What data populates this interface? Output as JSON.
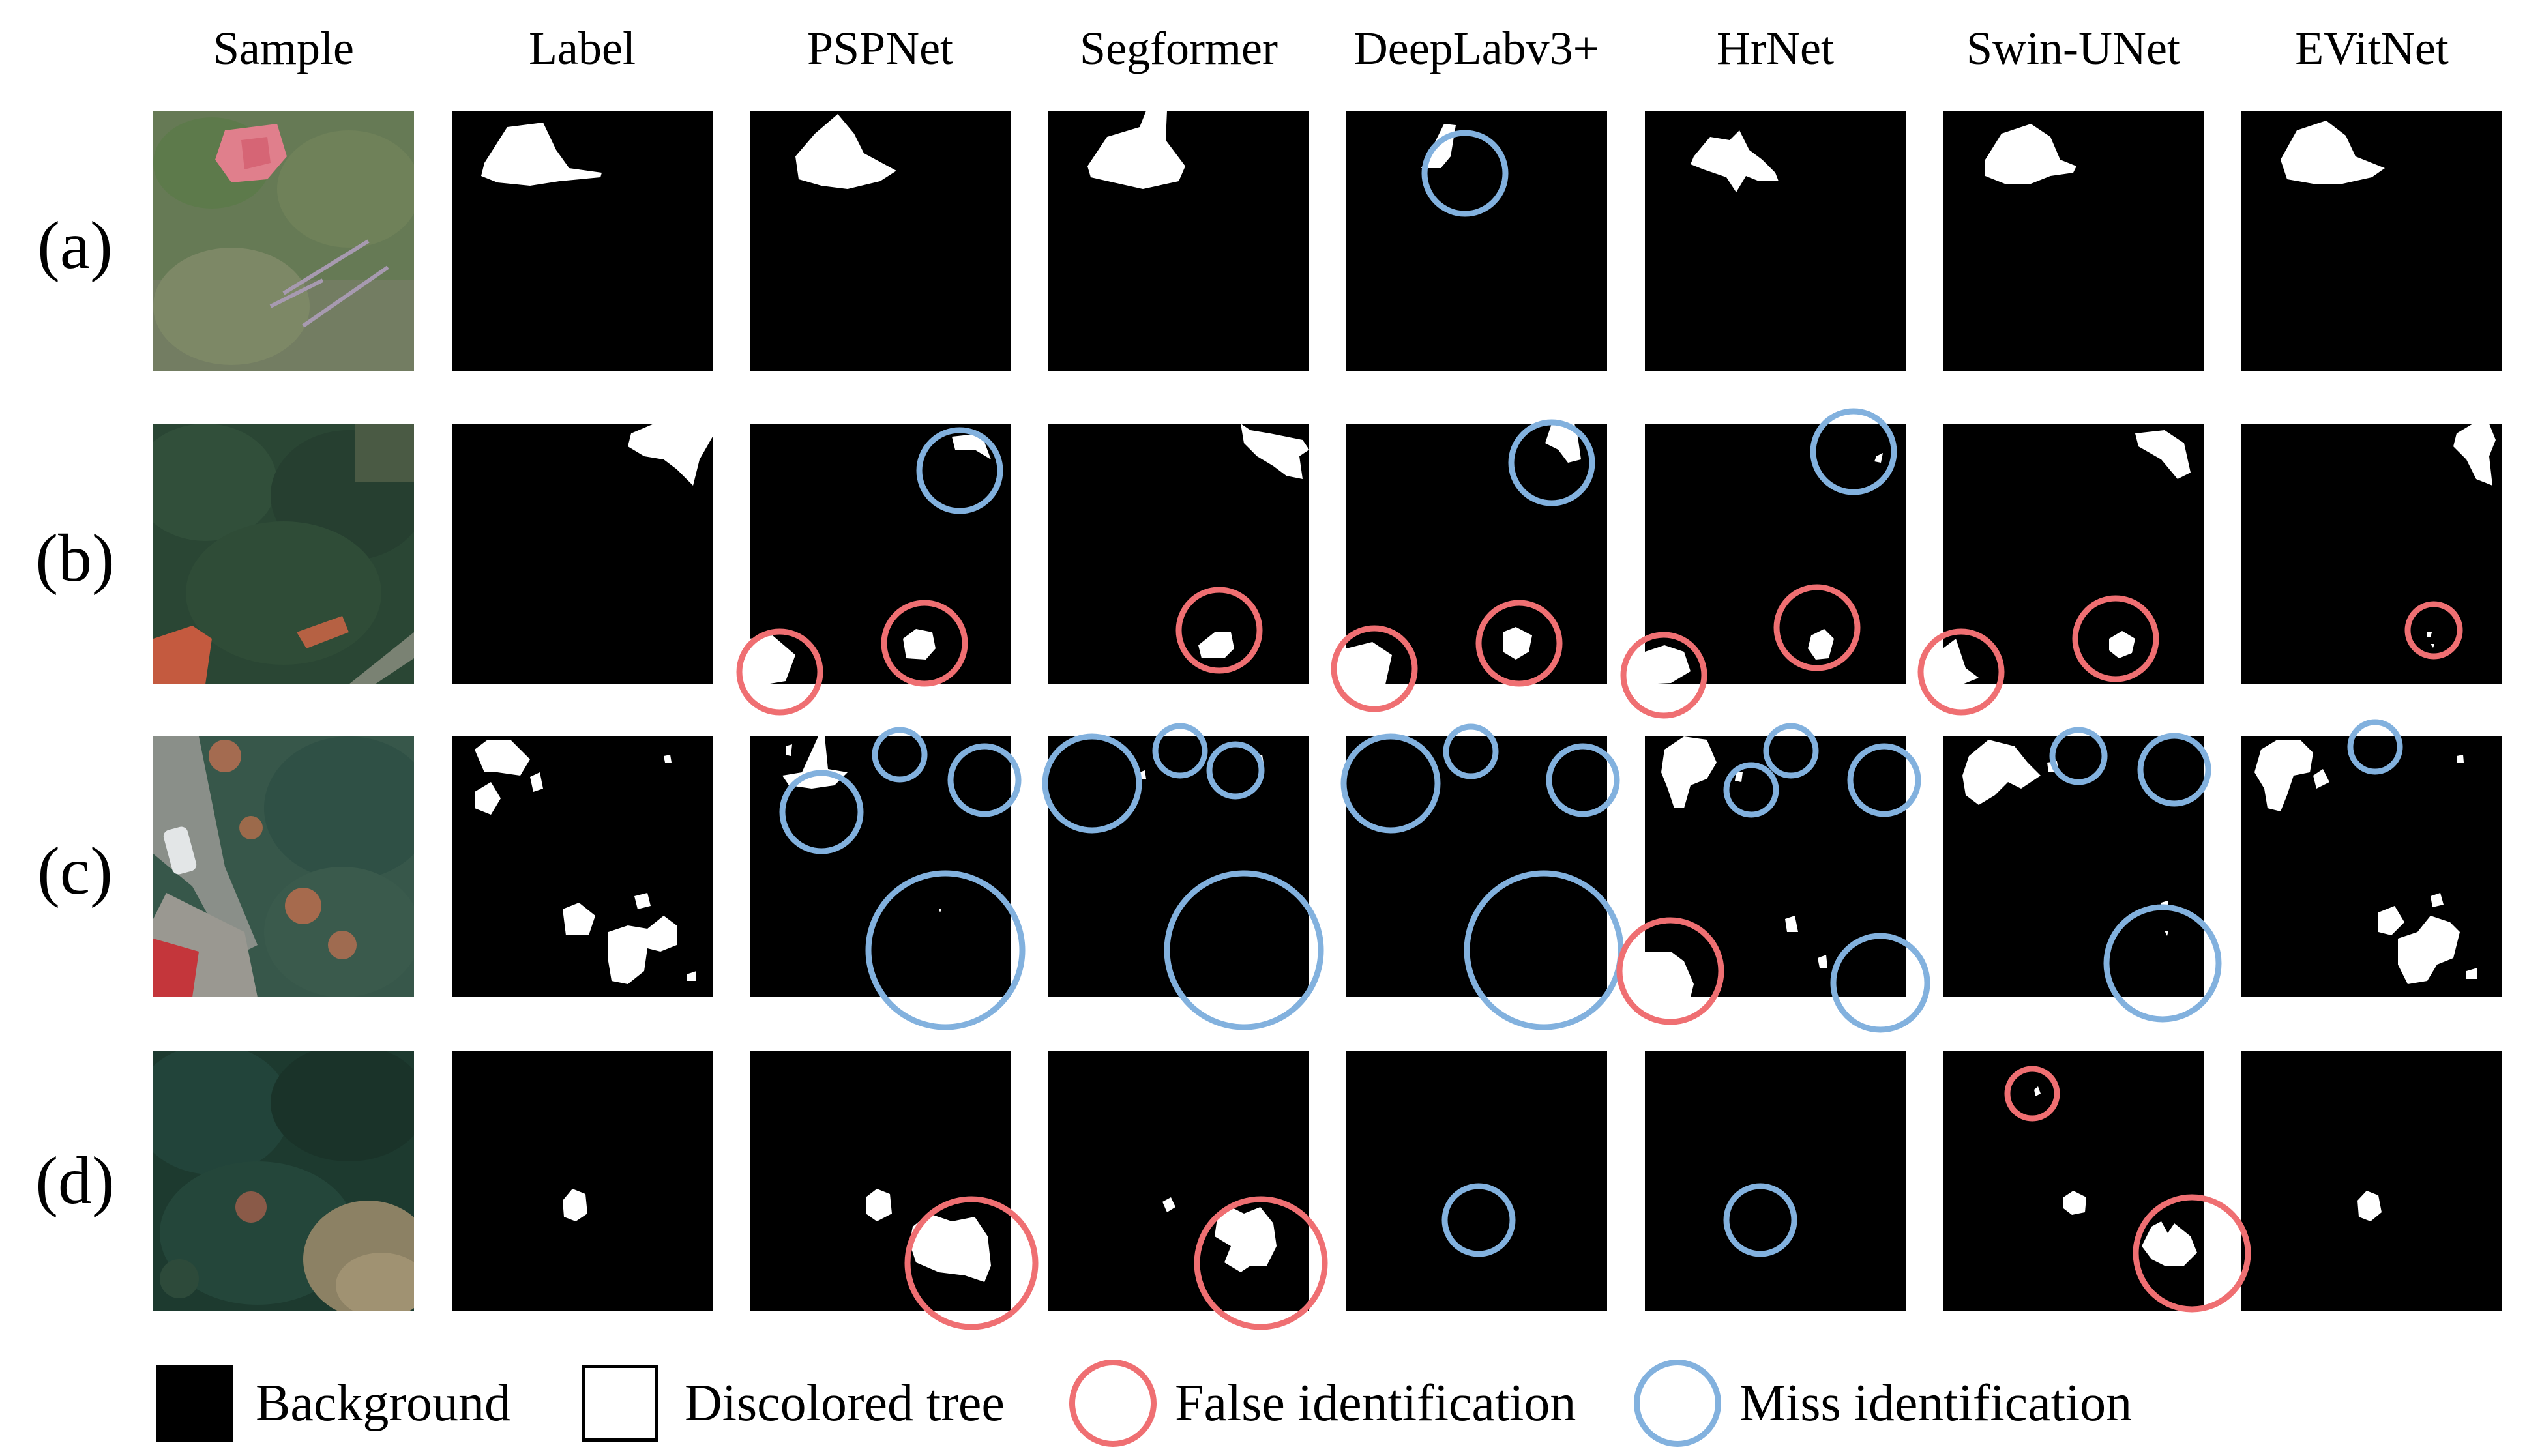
{
  "colors": {
    "background": "#000000",
    "discolored_tree": "#ffffff",
    "false_identification": "#ef6f72",
    "miss_identification": "#82b1de"
  },
  "columns": [
    "Sample",
    "Label",
    "PSPNet",
    "Segformer",
    "DeepLabv3+",
    "HrNet",
    "Swin-UNet",
    "EVitNet"
  ],
  "rows": [
    "(a)",
    "(b)",
    "(c)",
    "(d)"
  ],
  "legend": {
    "background": "Background",
    "discolored_tree": "Discolored tree",
    "false_identification": "False identification",
    "miss_identification": "Miss identification"
  }
}
